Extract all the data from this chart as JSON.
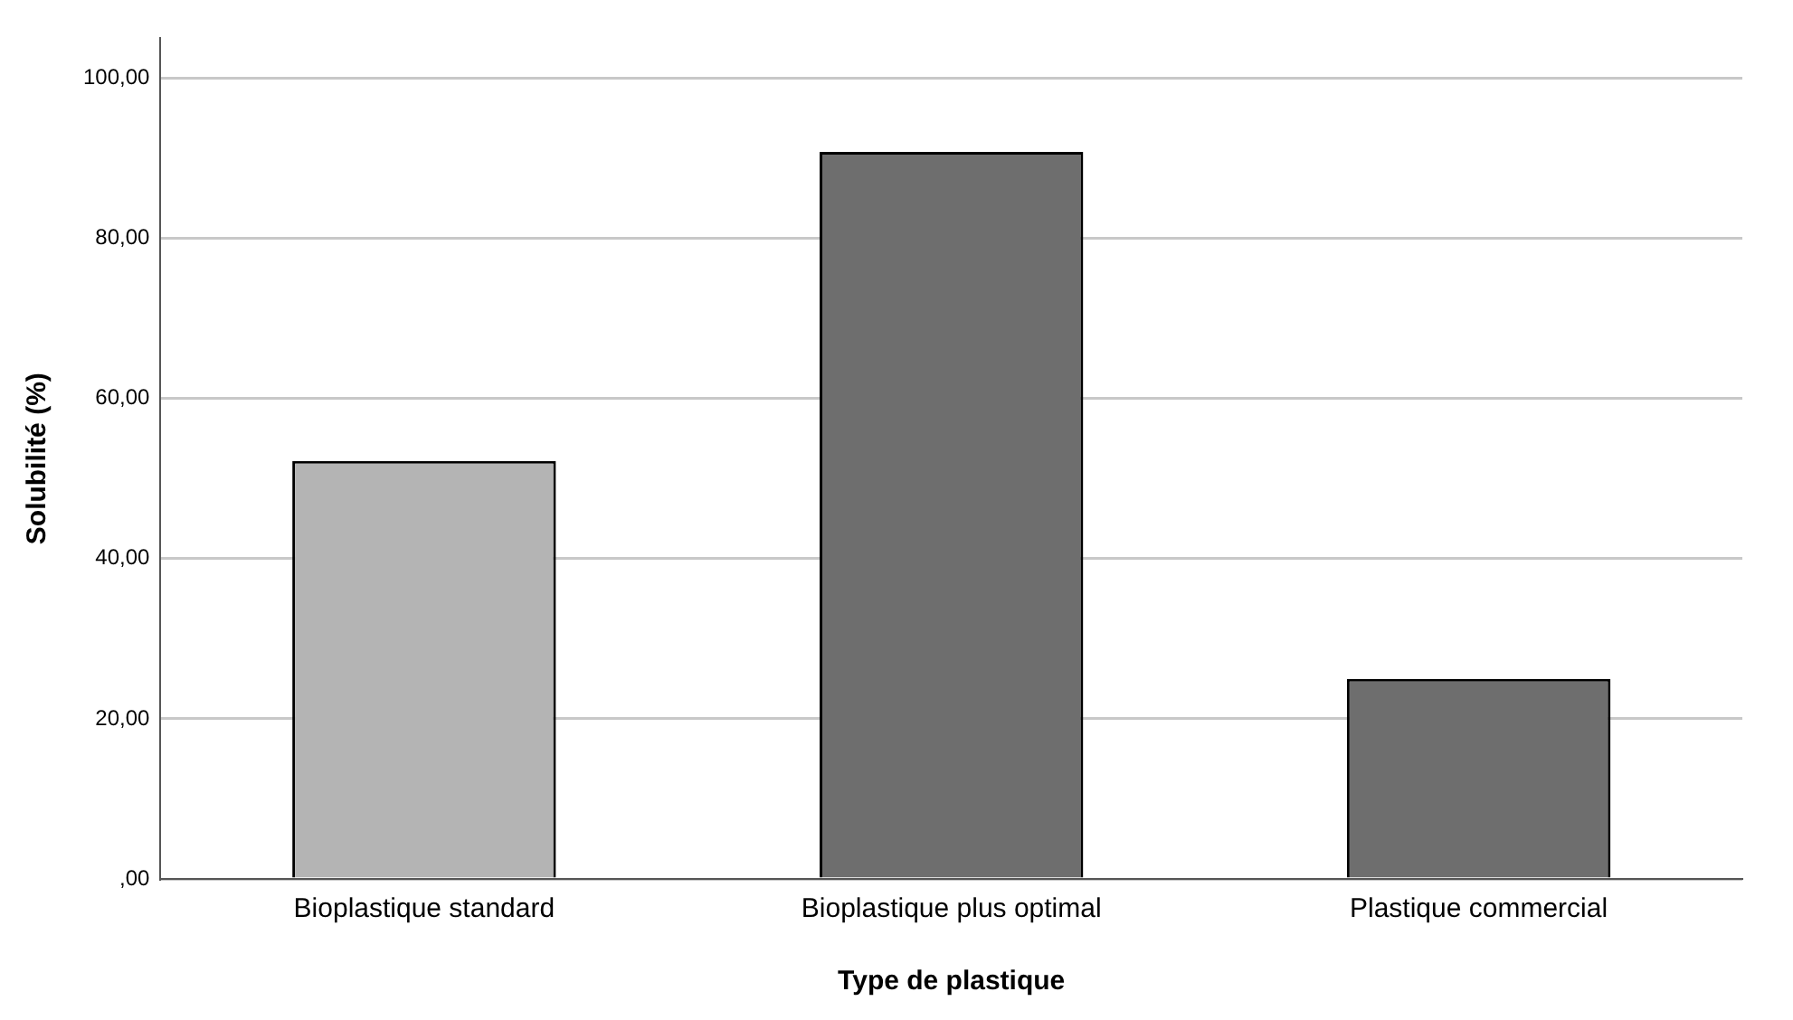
{
  "chart_data": {
    "type": "bar",
    "xlabel": "Type de plastique",
    "ylabel": "Solubilité (%)",
    "categories": [
      "Bioplastique standard",
      "Bioplastique plus optimal",
      "Plastique commercial"
    ],
    "values": [
      52.2,
      90.8,
      25.0
    ],
    "colors": [
      "#b4b4b4",
      "#6e6e6e",
      "#6e6e6e"
    ],
    "ylim": [
      0,
      105
    ],
    "yticks": [
      {
        "value": 0,
        "label": ",00"
      },
      {
        "value": 20,
        "label": "20,00"
      },
      {
        "value": 40,
        "label": "40,00"
      },
      {
        "value": 60,
        "label": "60,00"
      },
      {
        "value": 80,
        "label": "80,00"
      },
      {
        "value": 100,
        "label": "100,00"
      }
    ],
    "grid": "y",
    "legend": false
  }
}
